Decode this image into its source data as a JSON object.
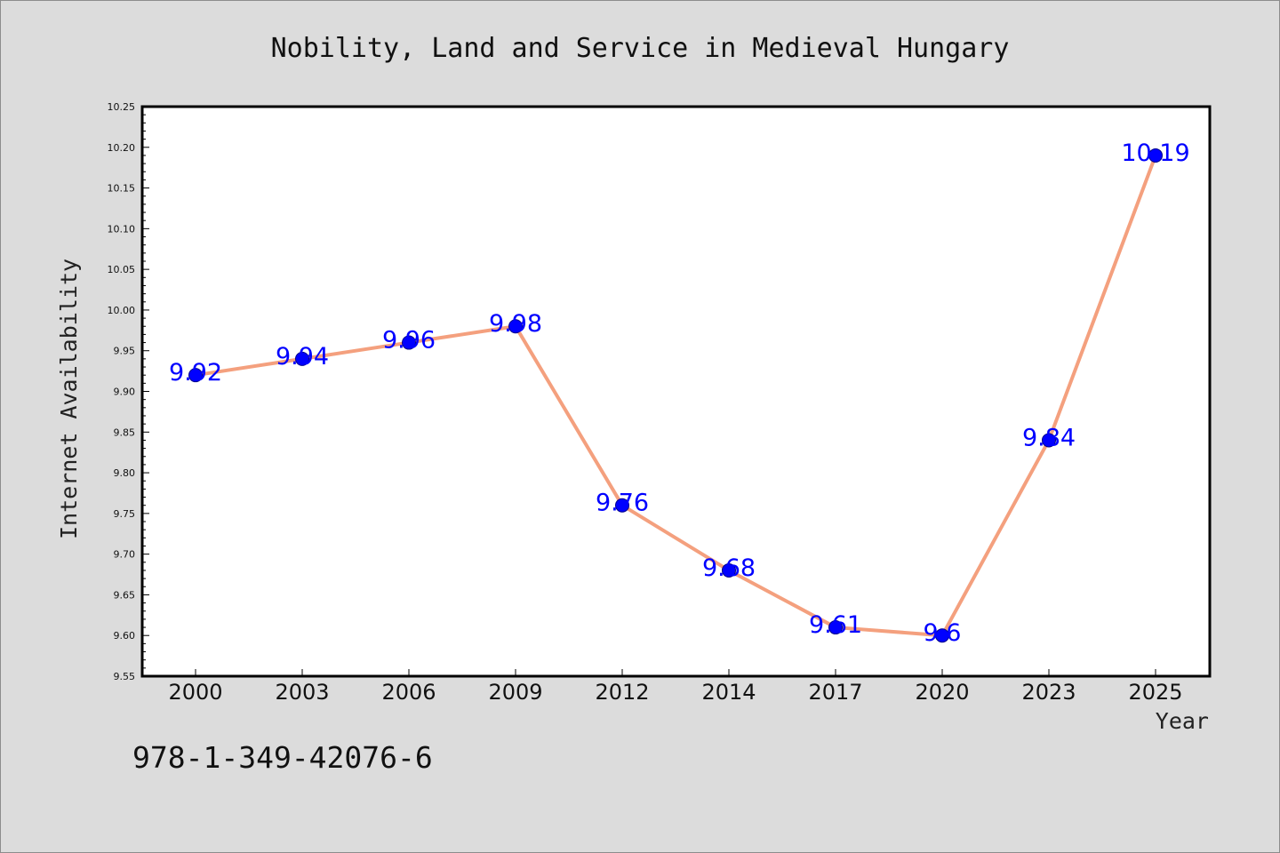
{
  "chart_data": {
    "type": "line",
    "title": "Nobility, Land and Service in Medieval Hungary",
    "xlabel": "Year",
    "ylabel": "Internet Availability",
    "categories": [
      "2000",
      "2003",
      "2006",
      "2009",
      "2012",
      "2014",
      "2017",
      "2020",
      "2023",
      "2025"
    ],
    "series": [
      {
        "values": [
          9.92,
          9.94,
          9.96,
          9.98,
          9.76,
          9.68,
          9.61,
          9.6,
          9.84,
          10.19
        ]
      }
    ],
    "data_labels": [
      "9.92",
      "9.94",
      "9.96",
      "9.98",
      "9.76",
      "9.68",
      "9.61",
      "9.6",
      "9.84",
      "10.19"
    ],
    "ylim": [
      9.55,
      10.25
    ],
    "yticks": [
      "9.55",
      "9.60",
      "9.65",
      "9.70",
      "9.75",
      "9.80",
      "9.85",
      "9.90",
      "9.95",
      "10.00",
      "10.05",
      "10.10",
      "10.15",
      "10.20",
      "10.25"
    ],
    "grid": false,
    "line_color": "#f4a07e",
    "marker_color": "#0000ff",
    "label_color": "#0000ff"
  },
  "footer": {
    "isbn": "978-1-349-42076-6"
  }
}
